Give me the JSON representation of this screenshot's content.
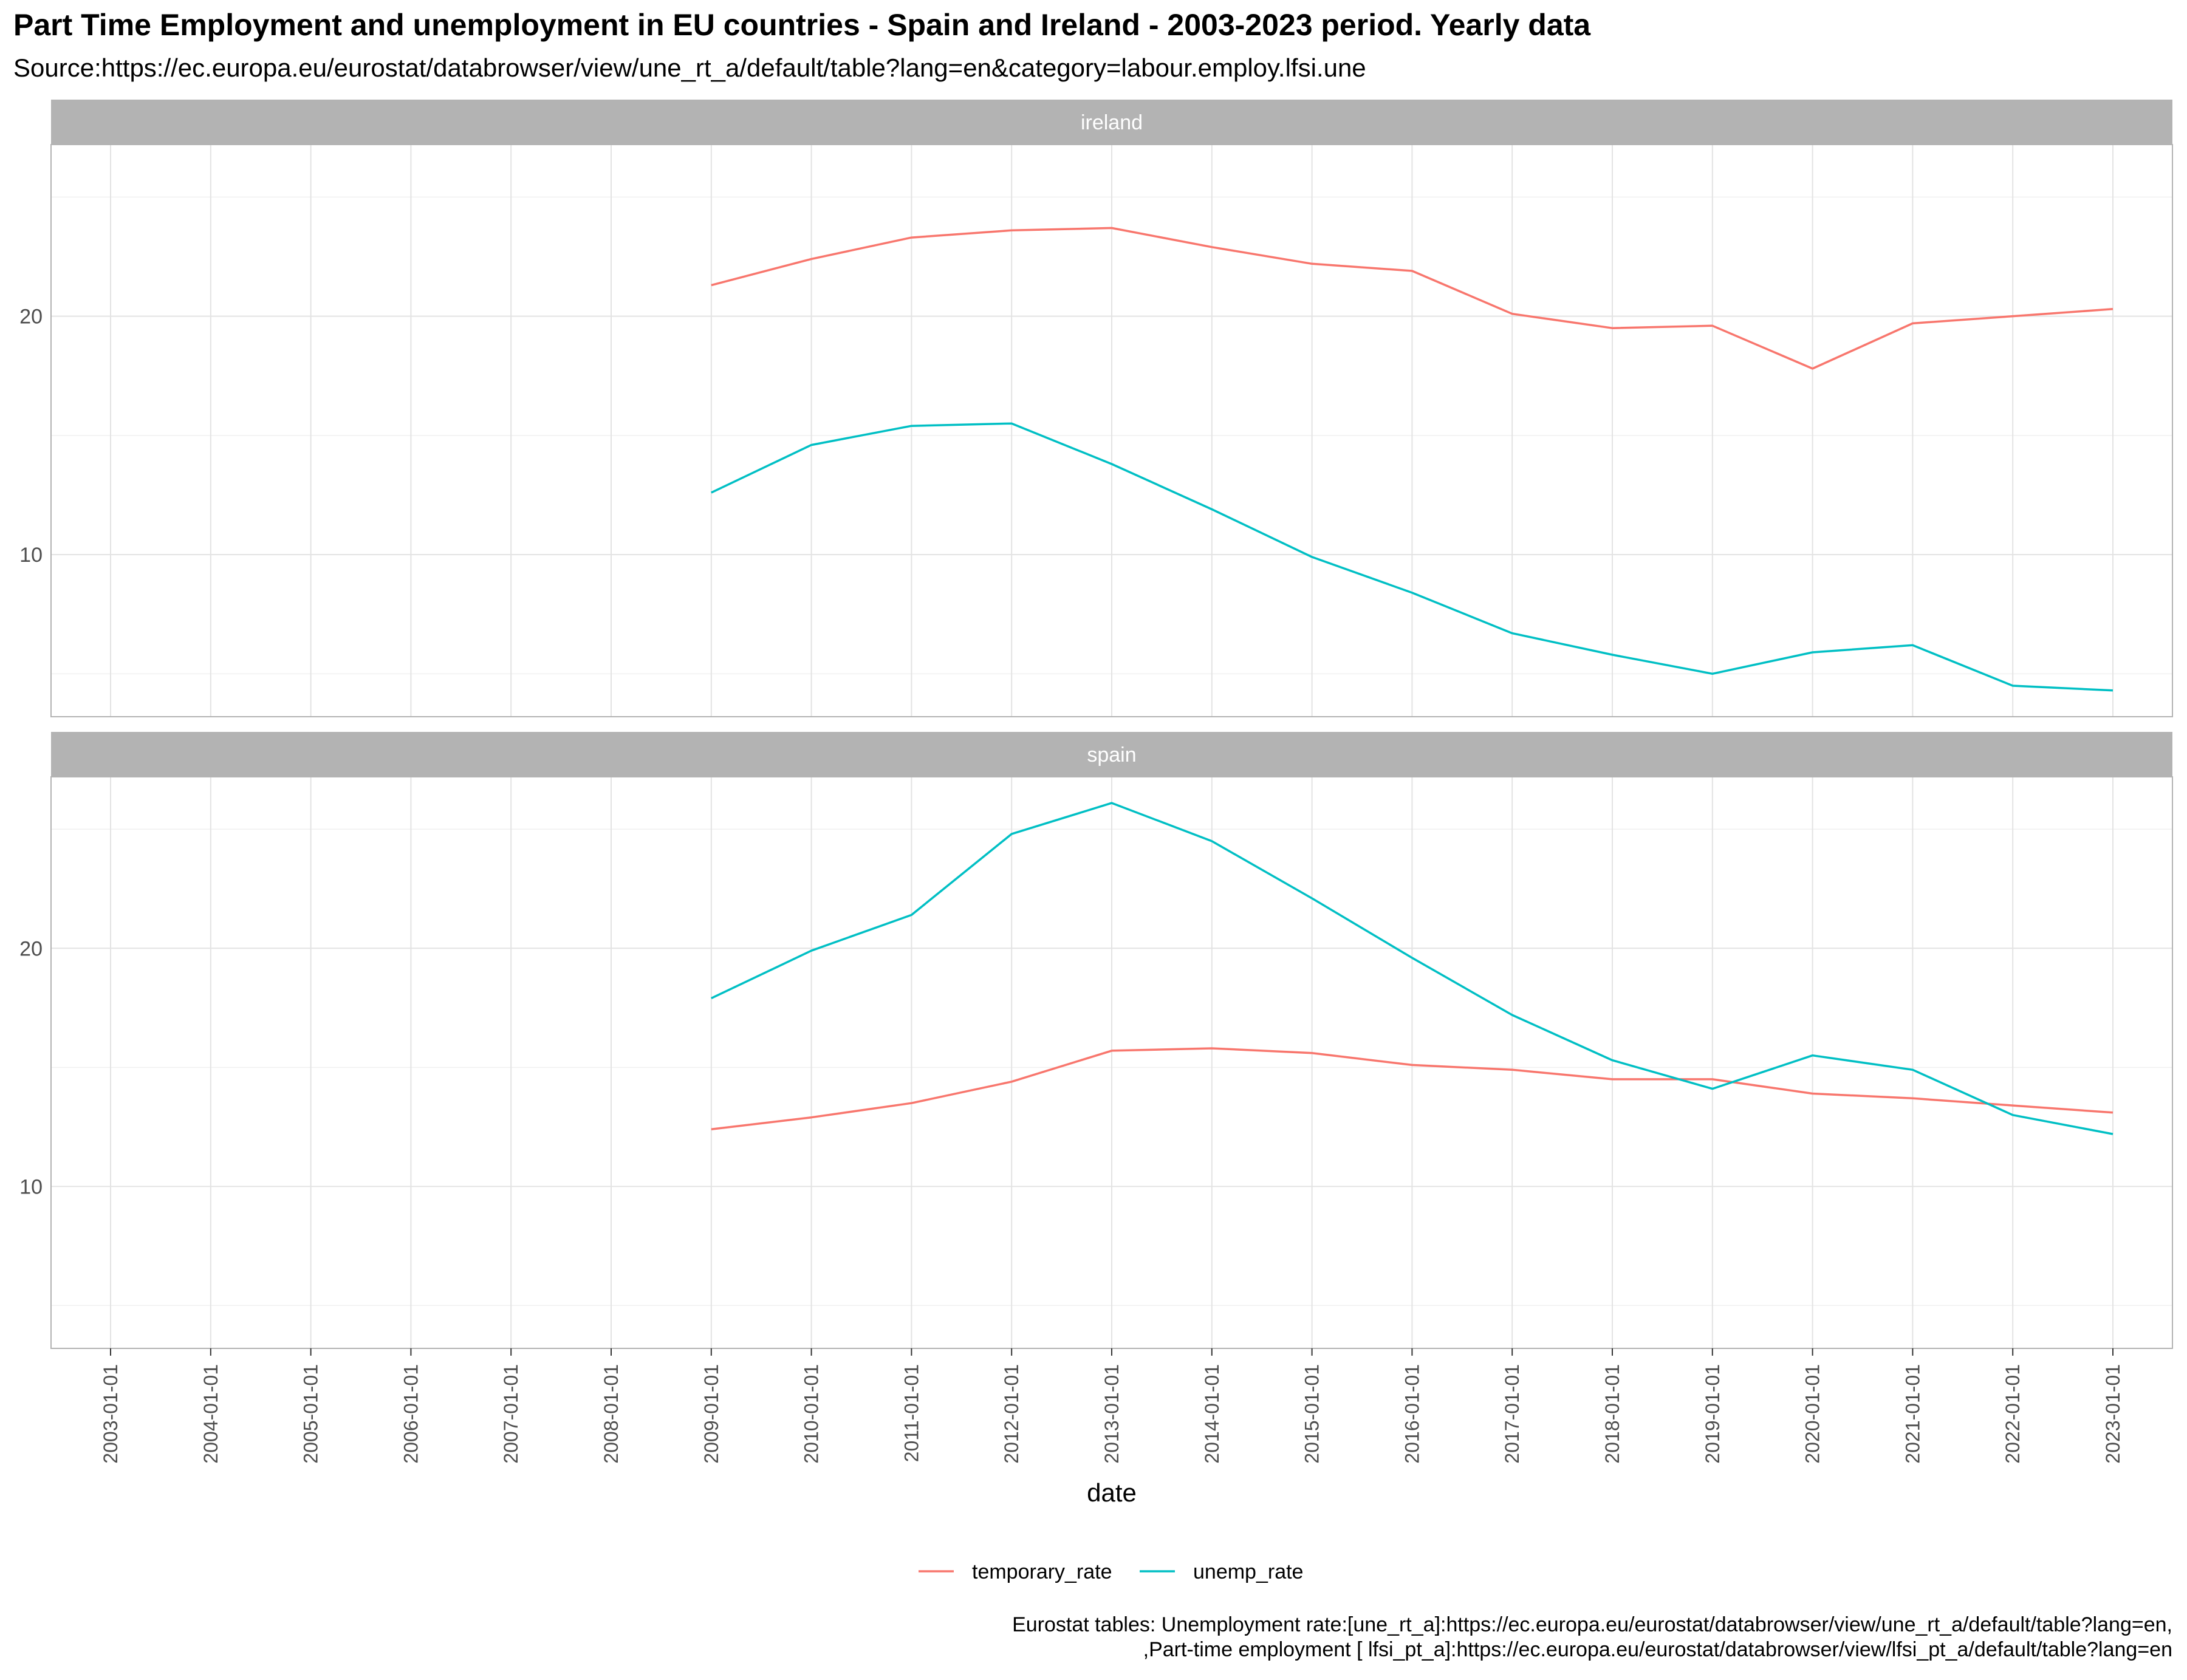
{
  "chart_data": {
    "type": "line",
    "title": "Part Time Employment and unemployment in EU countries - Spain and Ireland - 2003-2023 period. Yearly data",
    "subtitle": "Source:https://ec.europa.eu/eurostat/databrowser/view/une_rt_a/default/table?lang=en&category=labour.employ.lfsi.une",
    "xlabel": "date",
    "ylabel": "",
    "x": [
      "2003-01-01",
      "2004-01-01",
      "2005-01-01",
      "2006-01-01",
      "2007-01-01",
      "2008-01-01",
      "2009-01-01",
      "2010-01-01",
      "2011-01-01",
      "2012-01-01",
      "2013-01-01",
      "2014-01-01",
      "2015-01-01",
      "2016-01-01",
      "2017-01-01",
      "2018-01-01",
      "2019-01-01",
      "2020-01-01",
      "2021-01-01",
      "2022-01-01",
      "2023-01-01"
    ],
    "ylim": [
      3.2,
      27.2
    ],
    "yticks": [
      10,
      20
    ],
    "grid": true,
    "legend_position": "bottom",
    "colors": {
      "temporary_rate": "#F8766D",
      "unemp_rate": "#00BFC4"
    },
    "panels": [
      {
        "name": "ireland",
        "series": [
          {
            "name": "temporary_rate",
            "values": [
              null,
              null,
              null,
              null,
              null,
              null,
              21.3,
              22.4,
              23.3,
              23.6,
              23.7,
              22.9,
              22.2,
              21.9,
              20.1,
              19.5,
              19.6,
              17.8,
              19.7,
              20.0,
              20.3
            ]
          },
          {
            "name": "unemp_rate",
            "values": [
              null,
              null,
              null,
              null,
              null,
              null,
              12.6,
              14.6,
              15.4,
              15.5,
              13.8,
              11.9,
              9.9,
              8.4,
              6.7,
              5.8,
              5.0,
              5.9,
              6.2,
              4.5,
              4.3
            ]
          }
        ]
      },
      {
        "name": "spain",
        "series": [
          {
            "name": "temporary_rate",
            "values": [
              null,
              null,
              null,
              null,
              null,
              null,
              12.4,
              12.9,
              13.5,
              14.4,
              15.7,
              15.8,
              15.6,
              15.1,
              14.9,
              14.5,
              14.5,
              13.9,
              13.7,
              13.4,
              13.1
            ]
          },
          {
            "name": "unemp_rate",
            "values": [
              null,
              null,
              null,
              null,
              null,
              null,
              17.9,
              19.9,
              21.4,
              24.8,
              26.1,
              24.5,
              22.1,
              19.6,
              17.2,
              15.3,
              14.1,
              15.5,
              14.9,
              13.0,
              12.2
            ]
          }
        ]
      }
    ],
    "caption": [
      "Eurostat tables: Unemployment rate:[une_rt_a]:https://ec.europa.eu/eurostat/databrowser/view/une_rt_a/default/table?lang=en,",
      ",Part-time employment [ lfsi_pt_a]:https://ec.europa.eu/eurostat/databrowser/view/lfsi_pt_a/default/table?lang=en"
    ]
  }
}
